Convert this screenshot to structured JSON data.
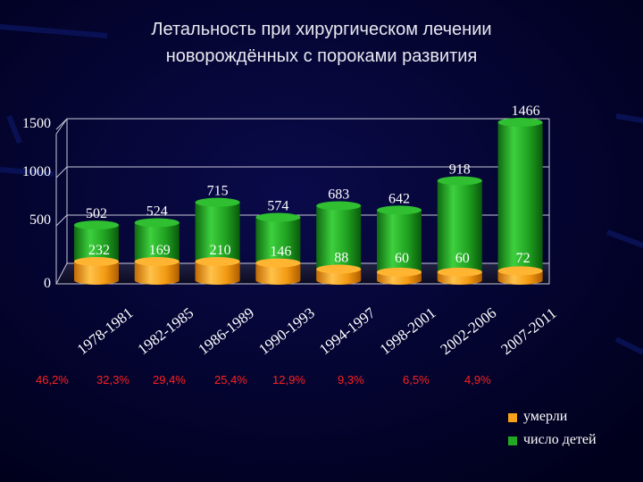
{
  "title": {
    "line1": "Летальность при хирургическом лечении",
    "line2": "новорождённых с пороками развития"
  },
  "colors": {
    "background": "#000028",
    "green": "#22a822",
    "orange": "#f5a21a",
    "percent": "#ff2020"
  },
  "chart_data": {
    "type": "bar",
    "style": "3d-cylinder",
    "categories": [
      "1978-1981",
      "1982-1985",
      "1986-1989",
      "1990-1993",
      "1994-1997",
      "1998-2001",
      "2002-2006",
      "2007-2011"
    ],
    "series": [
      {
        "name": "число детей",
        "color": "#22a822",
        "values": [
          502,
          524,
          715,
          574,
          683,
          642,
          918,
          1466
        ]
      },
      {
        "name": "умерли",
        "color": "#f5a21a",
        "values": [
          232,
          169,
          210,
          146,
          88,
          60,
          60,
          72
        ]
      }
    ],
    "yticks": [
      "0",
      "500",
      "1000",
      "1500"
    ],
    "ylim": [
      0,
      1500
    ],
    "grid": true,
    "legend_position": "bottom-right",
    "mortality_labels": [
      "46,2%",
      "32,3%",
      "29,4%",
      "25,4%",
      "12,9%",
      "9,3%",
      "6,5%",
      "4,9%"
    ]
  },
  "legend": {
    "items": [
      {
        "label": "умерли",
        "color": "#f5a21a"
      },
      {
        "label": "число детей",
        "color": "#22a822"
      }
    ]
  }
}
